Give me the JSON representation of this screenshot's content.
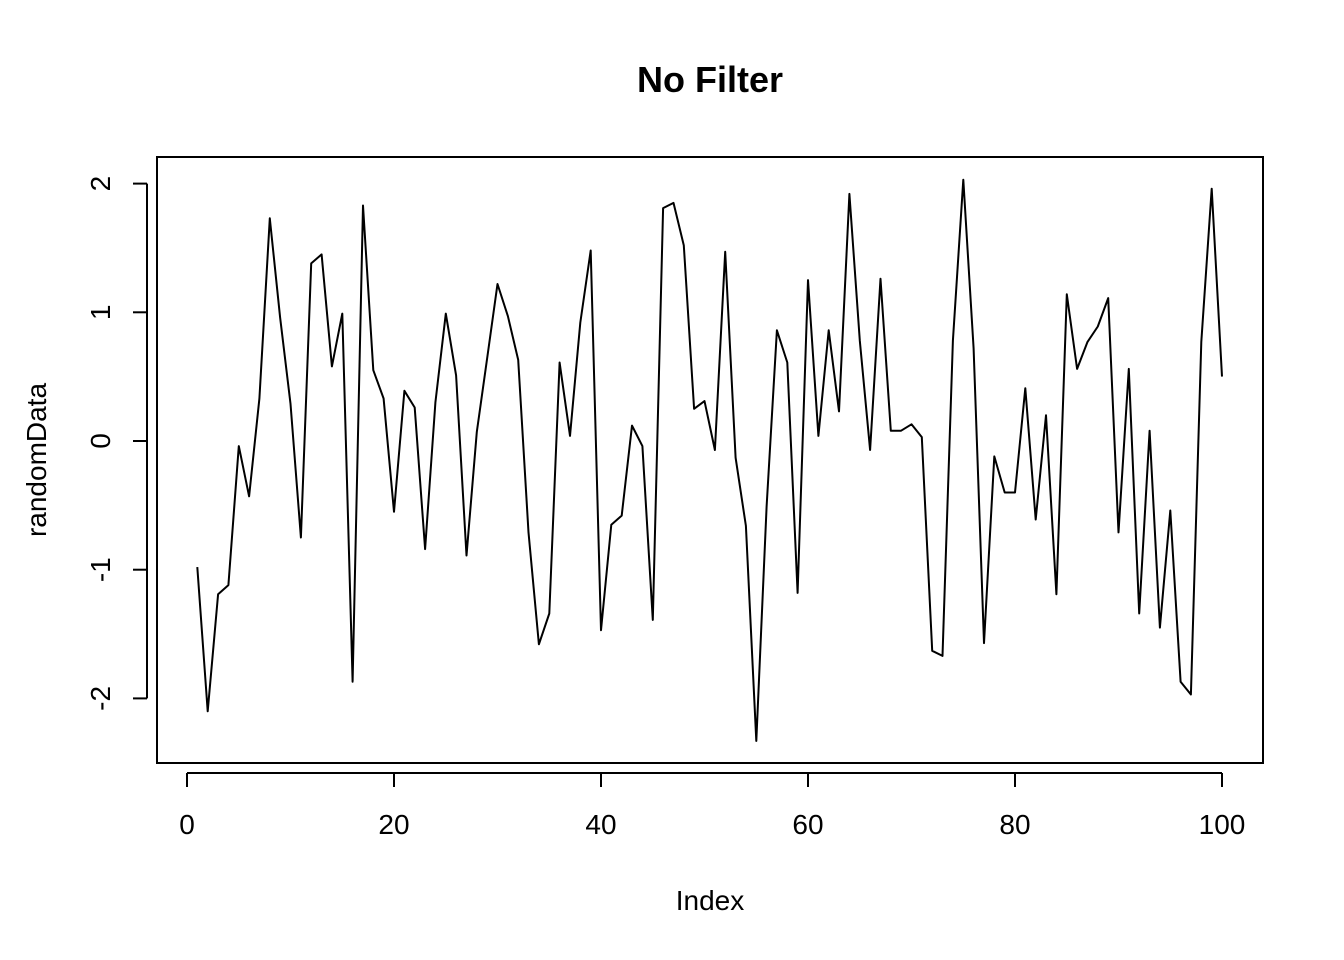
{
  "chart_data": {
    "type": "line",
    "title": "No Filter",
    "xlabel": "Index",
    "ylabel": "randomData",
    "xlim": [
      0,
      100
    ],
    "ylim": [
      -2.5,
      2.2
    ],
    "xticks": [
      0,
      20,
      40,
      60,
      80,
      100
    ],
    "yticks": [
      -2,
      -1,
      0,
      1,
      2
    ],
    "grid": false,
    "legend": "none",
    "line_color": "#000000",
    "series": [
      {
        "x": [
          1,
          2,
          3,
          4,
          5,
          6,
          7,
          8,
          9,
          10,
          11,
          12,
          13,
          14,
          15,
          16,
          17,
          18,
          19,
          20,
          21,
          22,
          23,
          24,
          25,
          26,
          27,
          28,
          29,
          30,
          31,
          32,
          33,
          34,
          35,
          36,
          37,
          38,
          39,
          40,
          41,
          42,
          43,
          44,
          45,
          46,
          47,
          48,
          49,
          50,
          51,
          52,
          53,
          54,
          55,
          56,
          57,
          58,
          59,
          60,
          61,
          62,
          63,
          64,
          65,
          66,
          67,
          68,
          69,
          70,
          71,
          72,
          73,
          74,
          75,
          76,
          77,
          78,
          79,
          80,
          81,
          82,
          83,
          84,
          85,
          86,
          87,
          88,
          89,
          90,
          91,
          92,
          93,
          94,
          95,
          96,
          97,
          98,
          99,
          100
        ],
        "values": [
          -0.98,
          -2.1,
          -1.19,
          -1.12,
          -0.04,
          -0.43,
          0.33,
          1.73,
          0.96,
          0.29,
          -0.75,
          1.38,
          1.45,
          0.58,
          0.99,
          -1.87,
          1.83,
          0.55,
          0.33,
          -0.55,
          0.39,
          0.26,
          -0.84,
          0.3,
          0.99,
          0.51,
          -0.89,
          0.07,
          0.64,
          1.22,
          0.97,
          0.63,
          -0.71,
          -1.58,
          -1.34,
          0.61,
          0.04,
          0.92,
          1.48,
          -1.47,
          -0.65,
          -0.58,
          0.12,
          -0.04,
          -1.39,
          1.81,
          1.85,
          1.52,
          0.25,
          0.31,
          -0.07,
          1.47,
          -0.13,
          -0.66,
          -2.33,
          -0.51,
          0.86,
          0.61,
          -1.18,
          1.25,
          0.04,
          0.86,
          0.23,
          1.92,
          0.78,
          -0.07,
          1.26,
          0.08,
          0.08,
          0.13,
          0.03,
          -1.63,
          -1.67,
          0.78,
          2.03,
          0.72,
          -1.57,
          -0.12,
          -0.4,
          -0.4,
          0.41,
          -0.61,
          0.2,
          -1.19,
          1.14,
          0.56,
          0.77,
          0.89,
          1.11,
          -0.71,
          0.56,
          -1.34,
          0.08,
          -1.45,
          -0.54,
          -1.87,
          -1.97,
          0.77,
          1.96,
          0.5
        ]
      }
    ]
  }
}
